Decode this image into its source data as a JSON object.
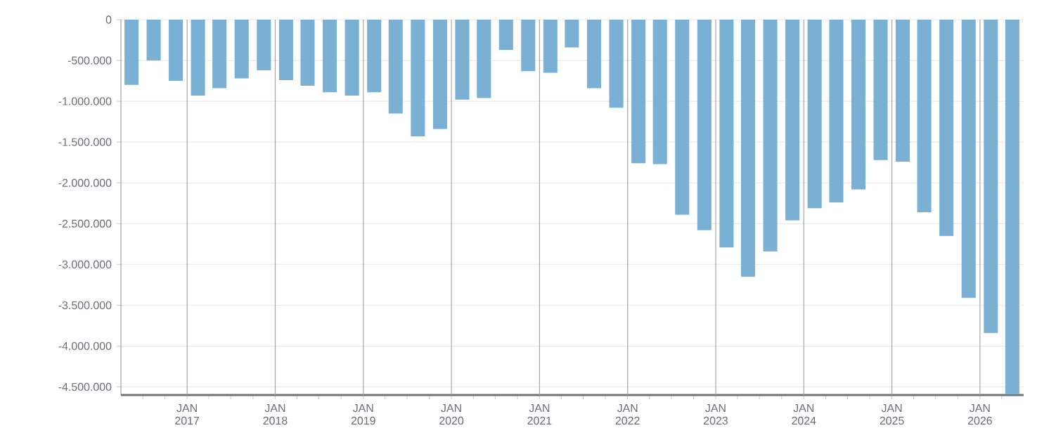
{
  "chart_data": {
    "type": "bar",
    "color": "#7ab0d4",
    "grid": true,
    "x": [
      "2016-05-15",
      "2016-08-15",
      "2016-11-15",
      "2017-02-15",
      "2017-05-15",
      "2017-08-15",
      "2017-11-15",
      "2018-02-15",
      "2018-05-15",
      "2018-08-15",
      "2018-11-15",
      "2019-02-15",
      "2019-05-15",
      "2019-08-15",
      "2019-11-15",
      "2020-02-15",
      "2020-05-15",
      "2020-08-15",
      "2020-11-15",
      "2021-02-15",
      "2021-05-15",
      "2021-08-15",
      "2021-11-15",
      "2022-02-15",
      "2022-05-15",
      "2022-08-15",
      "2022-11-15",
      "2023-02-15",
      "2023-05-15",
      "2023-08-15",
      "2023-11-15",
      "2024-02-15",
      "2024-05-15",
      "2024-08-15",
      "2024-11-15",
      "2025-02-15",
      "2025-05-15",
      "2025-08-15",
      "2025-11-15",
      "2026-02-15",
      "2026-05-15"
    ],
    "values": [
      -800000,
      -500000,
      -750000,
      -930000,
      -840000,
      -720000,
      -620000,
      -740000,
      -810000,
      -890000,
      -930000,
      -890000,
      -1150000,
      -1430000,
      -1340000,
      -980000,
      -960000,
      -370000,
      -630000,
      -650000,
      -340000,
      -840000,
      -1080000,
      -1760000,
      -1770000,
      -2390000,
      -2580000,
      -2790000,
      -3150000,
      -2840000,
      -2460000,
      -2310000,
      -2240000,
      -2080000,
      -1720000,
      -1740000,
      -2360000,
      -2650000,
      -3410000,
      -3840000,
      -4590000
    ],
    "xlim": [
      "2016-04-01",
      "2026-07-01"
    ],
    "xticks": [
      {
        "value": "2016-07-01",
        "label": null
      },
      {
        "value": "2016-10-01",
        "label": null
      },
      {
        "value": "2017-01-01",
        "label": "JAN 2017"
      },
      {
        "value": "2017-04-01",
        "label": null
      },
      {
        "value": "2017-07-01",
        "label": null
      },
      {
        "value": "2017-10-01",
        "label": null
      },
      {
        "value": "2018-01-01",
        "label": "JAN 2018"
      },
      {
        "value": "2018-04-01",
        "label": null
      },
      {
        "value": "2018-07-01",
        "label": null
      },
      {
        "value": "2018-10-01",
        "label": null
      },
      {
        "value": "2019-01-01",
        "label": "JAN 2019"
      },
      {
        "value": "2019-04-01",
        "label": null
      },
      {
        "value": "2019-07-01",
        "label": null
      },
      {
        "value": "2019-10-01",
        "label": null
      },
      {
        "value": "2020-01-01",
        "label": "JAN 2020"
      },
      {
        "value": "2020-04-01",
        "label": null
      },
      {
        "value": "2020-07-01",
        "label": null
      },
      {
        "value": "2020-10-01",
        "label": null
      },
      {
        "value": "2021-01-01",
        "label": "JAN 2021"
      },
      {
        "value": "2021-04-01",
        "label": null
      },
      {
        "value": "2021-07-01",
        "label": null
      },
      {
        "value": "2021-10-01",
        "label": null
      },
      {
        "value": "2022-01-01",
        "label": "JAN 2022"
      },
      {
        "value": "2022-04-01",
        "label": null
      },
      {
        "value": "2022-07-01",
        "label": null
      },
      {
        "value": "2022-10-01",
        "label": null
      },
      {
        "value": "2023-01-01",
        "label": "JAN 2023"
      },
      {
        "value": "2023-04-01",
        "label": null
      },
      {
        "value": "2023-07-01",
        "label": null
      },
      {
        "value": "2023-10-01",
        "label": null
      },
      {
        "value": "2024-01-01",
        "label": "JAN 2024"
      },
      {
        "value": "2024-04-01",
        "label": null
      },
      {
        "value": "2024-07-01",
        "label": null
      },
      {
        "value": "2024-10-01",
        "label": null
      },
      {
        "value": "2025-01-01",
        "label": "JAN 2025"
      },
      {
        "value": "2025-04-01",
        "label": null
      },
      {
        "value": "2025-07-01",
        "label": null
      },
      {
        "value": "2025-10-01",
        "label": null
      },
      {
        "value": "2026-01-01",
        "label": "JAN 2026"
      },
      {
        "value": "2026-04-01",
        "label": null
      }
    ],
    "ylim": [
      -4600000,
      0
    ],
    "yticks": [
      0,
      {
        "value": -500000,
        "label": "-500.000"
      },
      {
        "value": -1000000,
        "label": "-1.000.000"
      },
      {
        "value": -1500000,
        "label": "-1.500.000"
      },
      {
        "value": -2000000,
        "label": "-2.000.000"
      },
      {
        "value": -2500000,
        "label": "-2.500.000"
      },
      {
        "value": -3000000,
        "label": "-3.000.000"
      },
      {
        "value": -3500000,
        "label": "-3.500.000"
      },
      {
        "value": -4000000,
        "label": "-4.000.000"
      },
      {
        "value": -4500000,
        "label": "-4.500.000"
      }
    ]
  }
}
